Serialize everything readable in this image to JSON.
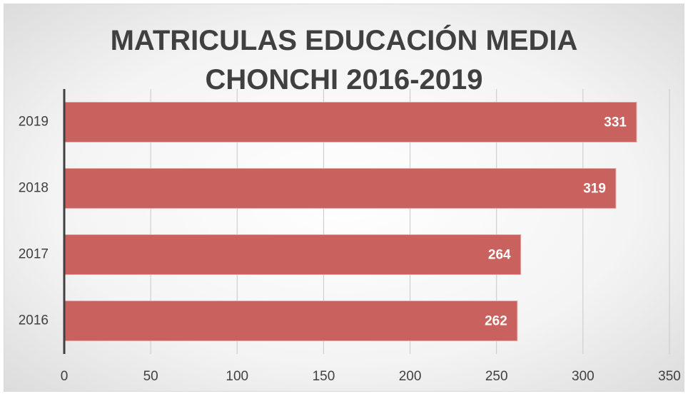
{
  "chart_data": {
    "type": "bar",
    "orientation": "horizontal",
    "title": "MATRICULAS EDUCACIÓN MEDIA CHONCHI 2016-2019",
    "categories": [
      "2016",
      "2017",
      "2018",
      "2019"
    ],
    "values": [
      262,
      264,
      319,
      331
    ],
    "color": "#c9615e",
    "xlim": [
      0,
      350
    ],
    "xticks": [
      0,
      50,
      100,
      150,
      200,
      250,
      300,
      350
    ],
    "grid": true
  }
}
